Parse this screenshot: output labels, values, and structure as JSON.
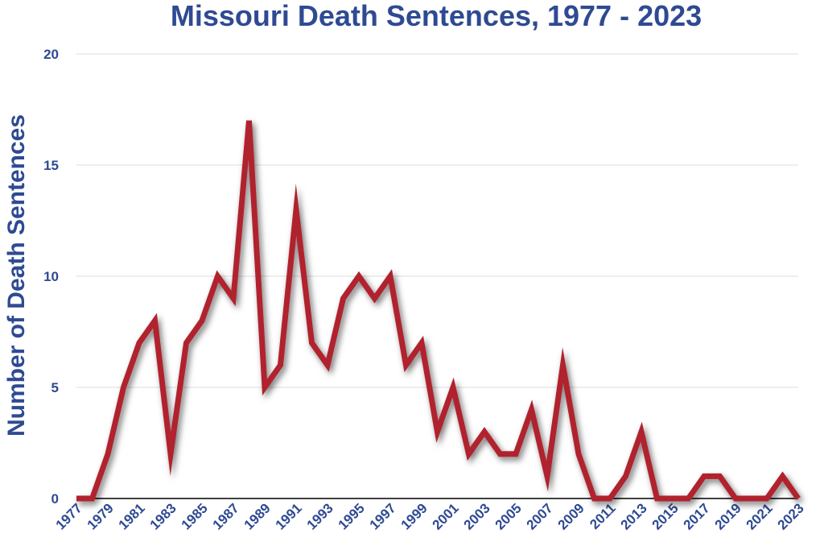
{
  "chart_data": {
    "type": "line",
    "title": "Missouri Death Sentences, 1977 - 2023",
    "xlabel": "",
    "ylabel": "Number of Death Sentences",
    "ylim": [
      0,
      20
    ],
    "yticks": [
      "0",
      "5",
      "10",
      "15",
      "20"
    ],
    "x": [
      1977,
      1978,
      1979,
      1980,
      1981,
      1982,
      1983,
      1984,
      1985,
      1986,
      1987,
      1988,
      1989,
      1990,
      1991,
      1992,
      1993,
      1994,
      1995,
      1996,
      1997,
      1998,
      1999,
      2000,
      2001,
      2002,
      2003,
      2004,
      2005,
      2006,
      2007,
      2008,
      2009,
      2010,
      2011,
      2012,
      2013,
      2014,
      2015,
      2016,
      2017,
      2018,
      2019,
      2020,
      2021,
      2022,
      2023
    ],
    "xtick_labels": [
      "1977",
      "1979",
      "1981",
      "1983",
      "1985",
      "1987",
      "1989",
      "1991",
      "1993",
      "1995",
      "1997",
      "1999",
      "2001",
      "2003",
      "2005",
      "2007",
      "2009",
      "2011",
      "2013",
      "2015",
      "2017",
      "2019",
      "2021",
      "2023"
    ],
    "series": [
      {
        "values": [
          0,
          0,
          2,
          5,
          7,
          8,
          2,
          7,
          8,
          10,
          9,
          17,
          5,
          6,
          13,
          7,
          6,
          9,
          10,
          9,
          10,
          6,
          7,
          3,
          5,
          2,
          3,
          2,
          2,
          4,
          1,
          6,
          2,
          0,
          0,
          1,
          3,
          0,
          0,
          0,
          1,
          1,
          0,
          0,
          0,
          1,
          0
        ]
      }
    ],
    "grid": true,
    "colors": {
      "line": "#b0232e",
      "text": "#2e4a92",
      "grid": "#dcdcdc"
    }
  }
}
